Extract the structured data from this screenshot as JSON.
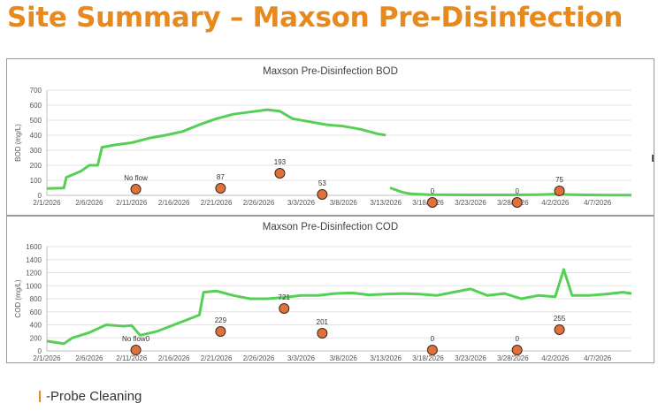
{
  "slide": {
    "title": "Site Summary – Maxson Pre-Disinfection"
  },
  "legend": {
    "label": "-Probe Cleaning",
    "color": "#E8891E"
  },
  "colors": {
    "series": "#55D055",
    "marker_fill": "#E2703A",
    "marker_stroke": "#3a2a20",
    "grid": "#e3e3e3",
    "axis_text": "#555555"
  },
  "chart_data": [
    {
      "type": "line",
      "title": "Maxson Pre-Disinfection BOD",
      "ylabel": "BOD (mg/L)",
      "xlabel": "",
      "ylim": [
        0,
        700
      ],
      "yticks": [
        0,
        100,
        200,
        300,
        400,
        500,
        600,
        700
      ],
      "x_range_days": [
        0,
        69
      ],
      "x_start": "2/1/2026",
      "xticks": [
        {
          "day": 0,
          "label": "2/1/2026"
        },
        {
          "day": 5,
          "label": "2/6/2026"
        },
        {
          "day": 10,
          "label": "2/11/2026"
        },
        {
          "day": 15,
          "label": "2/16/2026"
        },
        {
          "day": 20,
          "label": "2/21/2026"
        },
        {
          "day": 25,
          "label": "2/26/2026"
        },
        {
          "day": 30,
          "label": "3/3/2026"
        },
        {
          "day": 35,
          "label": "3/8/2026"
        },
        {
          "day": 40,
          "label": "3/13/2026"
        },
        {
          "day": 45,
          "label": "3/18/2026"
        },
        {
          "day": 50,
          "label": "3/23/2026"
        },
        {
          "day": 55,
          "label": "3/28/2026"
        },
        {
          "day": 60,
          "label": "4/2/2026"
        },
        {
          "day": 65,
          "label": "4/7/2026"
        }
      ],
      "series": [
        {
          "name": "BOD",
          "points": [
            [
              0,
              45
            ],
            [
              2,
              48
            ],
            [
              2.3,
              120
            ],
            [
              4,
              160
            ],
            [
              5,
              200
            ],
            [
              6,
              200
            ],
            [
              6.5,
              320
            ],
            [
              8,
              335
            ],
            [
              10,
              350
            ],
            [
              12,
              380
            ],
            [
              14,
              400
            ],
            [
              16,
              425
            ],
            [
              18,
              470
            ],
            [
              20,
              510
            ],
            [
              22,
              540
            ],
            [
              24,
              555
            ],
            [
              26,
              570
            ],
            [
              27.5,
              560
            ],
            [
              29,
              510
            ],
            [
              31,
              490
            ],
            [
              33,
              470
            ],
            [
              35,
              460
            ],
            [
              37,
              440
            ],
            [
              39,
              410
            ],
            [
              40,
              400
            ],
            [
              40,
              null
            ],
            [
              40.5,
              50
            ],
            [
              42,
              20
            ],
            [
              43,
              10
            ],
            [
              45,
              5
            ],
            [
              50,
              3
            ],
            [
              55,
              3
            ],
            [
              58,
              5
            ],
            [
              60,
              8
            ],
            [
              62,
              5
            ],
            [
              64,
              3
            ],
            [
              66,
              2
            ],
            [
              69,
              2
            ]
          ]
        }
      ],
      "annotations": [
        {
          "day": 10.5,
          "label": "No flow"
        },
        {
          "day": 20.5,
          "label": "87"
        },
        {
          "day": 27.5,
          "label": "193"
        },
        {
          "day": 32.5,
          "label": "53"
        },
        {
          "day": 45.5,
          "label": "0"
        },
        {
          "day": 55.5,
          "label": "0"
        },
        {
          "day": 60.5,
          "label": "75"
        }
      ]
    },
    {
      "type": "line",
      "title": "Maxson Pre-Disinfection COD",
      "ylabel": "COD (mg/L)",
      "xlabel": "",
      "ylim": [
        0,
        1600
      ],
      "yticks": [
        0,
        200,
        400,
        600,
        800,
        1000,
        1200,
        1400,
        1600
      ],
      "x_range_days": [
        0,
        69
      ],
      "x_start": "2/1/2026",
      "xticks": [
        {
          "day": 0,
          "label": "2/1/2026"
        },
        {
          "day": 5,
          "label": "2/6/2026"
        },
        {
          "day": 10,
          "label": "2/11/2026"
        },
        {
          "day": 15,
          "label": "2/16/2026"
        },
        {
          "day": 20,
          "label": "2/21/2026"
        },
        {
          "day": 25,
          "label": "2/26/2026"
        },
        {
          "day": 30,
          "label": "3/3/2026"
        },
        {
          "day": 35,
          "label": "3/8/2026"
        },
        {
          "day": 40,
          "label": "3/13/2026"
        },
        {
          "day": 45,
          "label": "3/18/2026"
        },
        {
          "day": 50,
          "label": "3/23/2026"
        },
        {
          "day": 55,
          "label": "3/28/2026"
        },
        {
          "day": 60,
          "label": "4/2/2026"
        },
        {
          "day": 65,
          "label": "4/7/2026"
        }
      ],
      "series": [
        {
          "name": "COD",
          "points": [
            [
              0,
              150
            ],
            [
              2,
              110
            ],
            [
              3,
              200
            ],
            [
              5,
              280
            ],
            [
              7,
              400
            ],
            [
              9,
              380
            ],
            [
              10,
              390
            ],
            [
              11,
              240
            ],
            [
              13,
              300
            ],
            [
              15,
              400
            ],
            [
              17,
              500
            ],
            [
              18,
              550
            ],
            [
              18.5,
              900
            ],
            [
              20,
              920
            ],
            [
              22,
              850
            ],
            [
              24,
              800
            ],
            [
              26,
              800
            ],
            [
              28,
              820
            ],
            [
              30,
              850
            ],
            [
              32,
              850
            ],
            [
              34,
              880
            ],
            [
              36,
              890
            ],
            [
              38,
              860
            ],
            [
              40,
              870
            ],
            [
              42,
              880
            ],
            [
              44,
              870
            ],
            [
              46,
              850
            ],
            [
              48,
              900
            ],
            [
              50,
              950
            ],
            [
              52,
              850
            ],
            [
              54,
              880
            ],
            [
              56,
              800
            ],
            [
              58,
              850
            ],
            [
              60,
              830
            ],
            [
              61,
              1250
            ],
            [
              62,
              850
            ],
            [
              64,
              850
            ],
            [
              66,
              870
            ],
            [
              68,
              900
            ],
            [
              69,
              880
            ]
          ]
        }
      ],
      "annotations": [
        {
          "day": 10.5,
          "label": "No flow0"
        },
        {
          "day": 20.5,
          "label": "229"
        },
        {
          "day": 28,
          "label": "721"
        },
        {
          "day": 32.5,
          "label": "201"
        },
        {
          "day": 45.5,
          "label": "0"
        },
        {
          "day": 55.5,
          "label": "0"
        },
        {
          "day": 60.5,
          "label": "255"
        }
      ]
    }
  ]
}
